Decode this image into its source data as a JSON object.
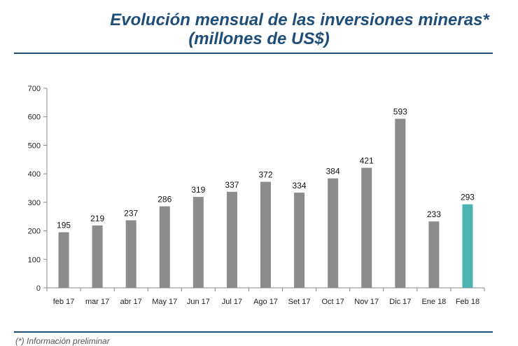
{
  "title_line1": "Evolución mensual de las inversiones mineras*",
  "title_line2": "(millones de US$)",
  "footnote": "(*) Información preliminar",
  "colors": {
    "title": "#1f4e79",
    "bar": "#8c8c8c",
    "highlight": "#4fb3b3",
    "rule": "#1f4e79"
  },
  "chart_data": {
    "type": "bar",
    "title": "Evolución mensual de las inversiones mineras* (millones de US$)",
    "xlabel": "",
    "ylabel": "",
    "ylim": [
      0,
      700
    ],
    "yticks": [
      0,
      100,
      200,
      300,
      400,
      500,
      600,
      700
    ],
    "categories": [
      "feb 17",
      "mar 17",
      "abr 17",
      "May 17",
      "Jun 17",
      "Jul 17",
      "Ago 17",
      "Set 17",
      "Oct 17",
      "Nov 17",
      "Dic 17",
      "Ene 18",
      "Feb 18"
    ],
    "values": [
      195,
      219,
      237,
      286,
      319,
      337,
      372,
      334,
      384,
      421,
      593,
      233,
      293
    ],
    "highlight_index": 12,
    "grid": false,
    "legend": "none"
  }
}
